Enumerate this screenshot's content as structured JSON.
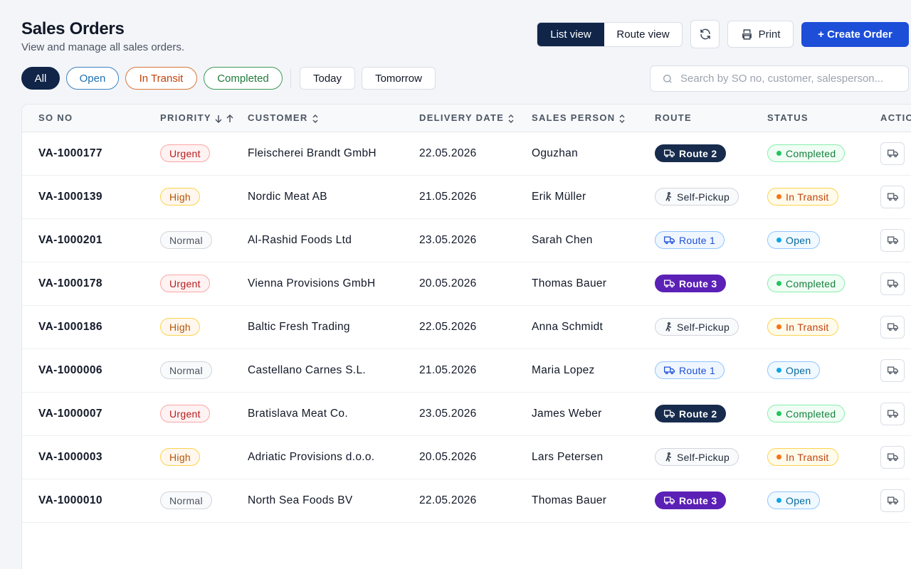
{
  "header": {
    "title": "Sales Orders",
    "subtitle": "View and manage all sales orders."
  },
  "toolbar": {
    "views": [
      "List view",
      "Route view"
    ],
    "print": "Print",
    "create": "+ Create Order"
  },
  "filters": {
    "status": [
      "All",
      "Open",
      "In Transit",
      "Completed"
    ],
    "date": [
      "Today",
      "Tomorrow"
    ],
    "search_placeholder": "Search by SO no, customer, salesperson..."
  },
  "table": {
    "columns": [
      "SO NO",
      "PRIORITY",
      "CUSTOMER",
      "DELIVERY DATE",
      "SALES PERSON",
      "ROUTE",
      "STATUS",
      "ACTIONS"
    ],
    "rows": [
      {
        "so": "VA-1000177",
        "priority": {
          "text": "Urgent",
          "color": "red"
        },
        "customer": "Fleischerei Brandt GmbH",
        "date": "22.05.2026",
        "salesperson": "Oguzhan",
        "route": {
          "text": "Route 2",
          "color": "navy"
        },
        "status": {
          "text": "Completed",
          "color": "green"
        }
      },
      {
        "so": "VA-1000139",
        "priority": {
          "text": "High",
          "color": "orange"
        },
        "customer": "Nordic Meat AB",
        "date": "21.05.2026",
        "salesperson": "Erik Müller",
        "route": {
          "text": "Self-Pickup",
          "color": "gray"
        },
        "status": {
          "text": "In Transit",
          "color": "orange"
        }
      },
      {
        "so": "VA-1000201",
        "priority": {
          "text": "Normal",
          "color": "gray"
        },
        "customer": "Al-Rashid Foods Ltd",
        "date": "23.05.2026",
        "salesperson": "Sarah Chen",
        "route": {
          "text": "Route 1",
          "color": "blue"
        },
        "status": {
          "text": "Open",
          "color": "blue"
        }
      },
      {
        "so": "VA-1000178",
        "priority": {
          "text": "Urgent",
          "color": "red"
        },
        "customer": "Vienna Provisions GmbH",
        "date": "20.05.2026",
        "salesperson": "Thomas Bauer",
        "route": {
          "text": "Route 3",
          "color": "purple"
        },
        "status": {
          "text": "Completed",
          "color": "green"
        }
      },
      {
        "so": "VA-1000186",
        "priority": {
          "text": "High",
          "color": "orange"
        },
        "customer": "Baltic Fresh Trading",
        "date": "22.05.2026",
        "salesperson": "Anna Schmidt",
        "route": {
          "text": "Self-Pickup",
          "color": "gray"
        },
        "status": {
          "text": "In Transit",
          "color": "orange"
        }
      },
      {
        "so": "VA-1000006",
        "priority": {
          "text": "Normal",
          "color": "gray"
        },
        "customer": "Castellano Carnes S.L.",
        "date": "21.05.2026",
        "salesperson": "Maria Lopez",
        "route": {
          "text": "Route 1",
          "color": "blue"
        },
        "status": {
          "text": "Open",
          "color": "blue"
        }
      },
      {
        "so": "VA-1000007",
        "priority": {
          "text": "Urgent",
          "color": "red"
        },
        "customer": "Bratislava Meat Co.",
        "date": "23.05.2026",
        "salesperson": "James Weber",
        "route": {
          "text": "Route 2",
          "color": "navy"
        },
        "status": {
          "text": "Completed",
          "color": "green"
        }
      },
      {
        "so": "VA-1000003",
        "priority": {
          "text": "High",
          "color": "orange"
        },
        "customer": "Adriatic Provisions d.o.o.",
        "date": "20.05.2026",
        "salesperson": "Lars Petersen",
        "route": {
          "text": "Self-Pickup",
          "color": "gray"
        },
        "status": {
          "text": "In Transit",
          "color": "orange"
        }
      },
      {
        "so": "VA-1000010",
        "priority": {
          "text": "Normal",
          "color": "gray"
        },
        "customer": "North Sea Foods BV",
        "date": "22.05.2026",
        "salesperson": "Thomas Bauer",
        "route": {
          "text": "Route 3",
          "color": "purple"
        },
        "status": {
          "text": "Open",
          "color": "blue"
        }
      }
    ]
  }
}
